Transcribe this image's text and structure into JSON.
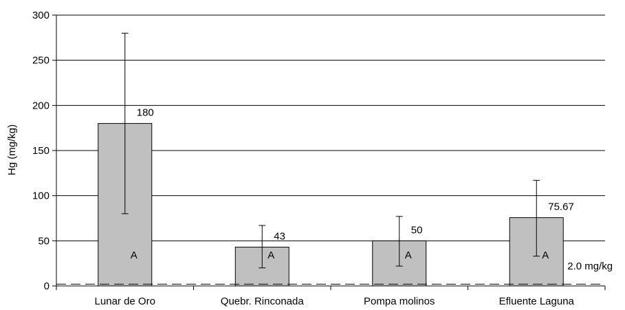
{
  "chart_data": {
    "type": "bar",
    "title": "",
    "xlabel": "",
    "ylabel": "Hg (mg/kg)",
    "ylim": [
      0,
      300
    ],
    "yticks": [
      0,
      50,
      100,
      150,
      200,
      250,
      300
    ],
    "grid": true,
    "categories": [
      "Lunar de Oro",
      "Quebr. Rinconada",
      "Pompa molinos",
      "Efluente Laguna"
    ],
    "values": [
      180,
      43,
      50,
      75.67
    ],
    "data_labels": [
      "180",
      "43",
      "50",
      "75.67"
    ],
    "error_bars": [
      {
        "low": 80,
        "high": 280
      },
      {
        "low": 20,
        "high": 67
      },
      {
        "low": 22,
        "high": 77
      },
      {
        "low": 33,
        "high": 117
      }
    ],
    "group_letters": [
      "A",
      "A",
      "A",
      "A"
    ],
    "reference_line": {
      "value": 2.0,
      "label": "2.0 mg/kg",
      "style": "dashed"
    },
    "colors": {
      "bar_fill": "#c0c0c0",
      "bar_stroke": "#000000",
      "grid": "#000000",
      "reference": "#000000"
    }
  }
}
